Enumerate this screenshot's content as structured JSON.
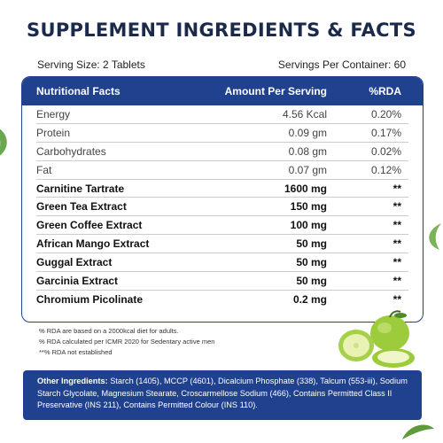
{
  "title": "SUPPLEMENT INGREDIENTS & FACTS",
  "serving_size": "Serving Size: 2 Tablets",
  "servings_per_container": "Servings Per Container: 60",
  "table": {
    "headers": {
      "name": "Nutritional Facts",
      "amount": "Amount Per Serving",
      "rda": "%RDA"
    },
    "rows": [
      {
        "name": "Energy",
        "amount": "4.56 Kcal",
        "rda": "0.20%",
        "bold": false
      },
      {
        "name": "Protein",
        "amount": "0.09 gm",
        "rda": "0.17%",
        "bold": false
      },
      {
        "name": "Carbohydrates",
        "amount": "0.08 gm",
        "rda": "0.02%",
        "bold": false
      },
      {
        "name": "Fat",
        "amount": "0.07 gm",
        "rda": "0.12%",
        "bold": false
      },
      {
        "name": "Carnitine Tartrate",
        "amount": "1600 mg",
        "rda": "**",
        "bold": true
      },
      {
        "name": "Green Tea Extract",
        "amount": "150 mg",
        "rda": "**",
        "bold": true
      },
      {
        "name": "Green Coffee Extract",
        "amount": "100 mg",
        "rda": "**",
        "bold": true
      },
      {
        "name": "African Mango Extract",
        "amount": "50 mg",
        "rda": "**",
        "bold": true
      },
      {
        "name": "Guggal Extract",
        "amount": "50 mg",
        "rda": "**",
        "bold": true
      },
      {
        "name": "Garcinia Extract",
        "amount": "50 mg",
        "rda": "**",
        "bold": true
      },
      {
        "name": "Chromium Picolinate",
        "amount": "0.2 mg",
        "rda": "**",
        "bold": true
      }
    ]
  },
  "notes": [
    "% RDA are based on a 2000kcal diet for adults.",
    "% RDA calculated per ICMR 2020 for Sedentary active men",
    "**% RDA not established"
  ],
  "other_ingredients": {
    "label": "Other Ingredients:",
    "text": " Starch (1405), MCCP (4601), Dicalcium Phosphate (338), Talcum (553-iii), Sodium Starch Glycolate, Magnesium Stearate, Croscarmellose Sodium (466), Contains Permitted Class II Preservative (INS 211), Contains Permitted Colour (INS 110)."
  },
  "colors": {
    "brand_blue": "#20418e",
    "title_navy": "#1b2a4a",
    "leaf_green": "#5c9a3a"
  }
}
